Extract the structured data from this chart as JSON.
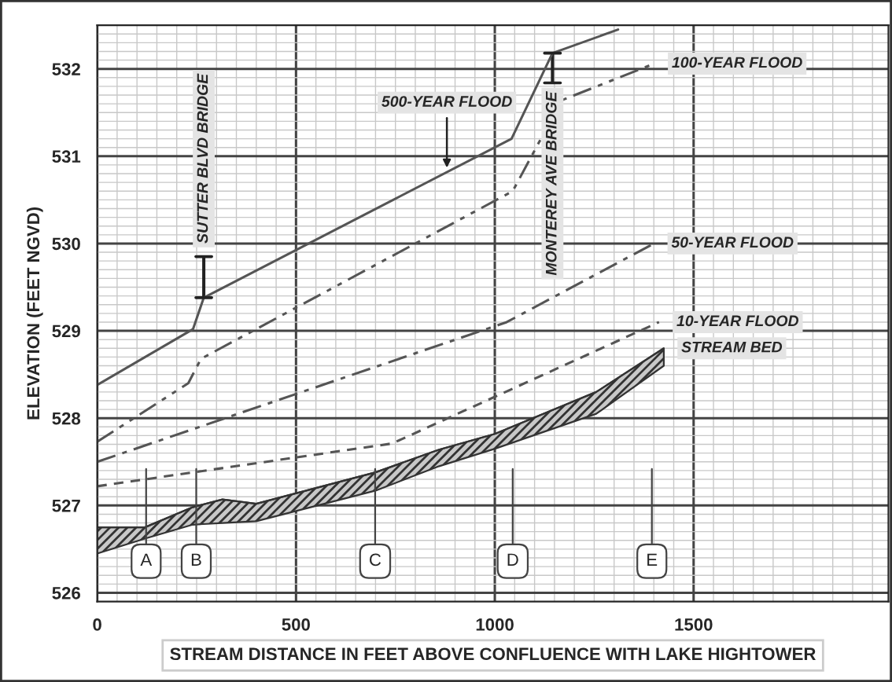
{
  "chart_data": {
    "type": "line",
    "xlabel": "STREAM DISTANCE IN FEET ABOVE CONFLUENCE WITH LAKE HIGHTOWER",
    "ylabel": "ELEVATION (FEET NGVD)",
    "xlim": [
      0,
      1990
    ],
    "xticks": [
      0,
      500,
      1000,
      1500
    ],
    "ylim": [
      525.9,
      532.5
    ],
    "yticks": [
      526,
      527,
      528,
      529,
      530,
      531,
      532
    ],
    "grid": true,
    "legend": false,
    "series": [
      {
        "name": "500-YEAR FLOOD",
        "line_style": "solid",
        "color": "#555555",
        "x": [
          0,
          241,
          268,
          1042,
          1145,
          1310
        ],
        "values": [
          528.38,
          529.02,
          529.38,
          531.2,
          532.18,
          532.45
        ]
      },
      {
        "name": "100-YEAR FLOOD",
        "line_style": "dashdotdot",
        "color": "#555555",
        "x": [
          0,
          229,
          261,
          1045,
          1168,
          1401
        ],
        "values": [
          527.73,
          528.4,
          528.68,
          530.6,
          531.64,
          532.06
        ]
      },
      {
        "name": "50-YEAR FLOOD",
        "line_style": "dashdot",
        "color": "#555555",
        "x": [
          0,
          1030,
          1400
        ],
        "values": [
          527.5,
          529.1,
          530.0
        ]
      },
      {
        "name": "10-YEAR FLOOD",
        "line_style": "dashed",
        "color": "#555555",
        "x": [
          0,
          742,
          1413
        ],
        "values": [
          527.22,
          527.71,
          529.1
        ]
      },
      {
        "name": "STREAM BED",
        "color": "#333333",
        "x": [
          0,
          120,
          240,
          315,
          400,
          700,
          860,
          1000,
          1255,
          1425
        ],
        "values": [
          526.75,
          526.75,
          526.98,
          527.07,
          527.02,
          527.38,
          527.64,
          527.82,
          528.3,
          528.8
        ],
        "lower": [
          526.45,
          526.62,
          526.78,
          526.8,
          526.82,
          527.17,
          527.45,
          527.65,
          528.05,
          528.6
        ],
        "upper": [
          526.75,
          526.75,
          526.98,
          527.07,
          527.02,
          527.38,
          527.64,
          527.82,
          528.3,
          528.8
        ]
      },
      {
        "type": "bar",
        "color": "#222222",
        "x": [
          268,
          1145
        ],
        "base": [
          529.38,
          531.84
        ],
        "values": [
          0.47,
          0.34
        ]
      }
    ],
    "annotations": [
      {
        "text": "SUTTER BLVD BRIDGE",
        "x": 268,
        "y": 529.85
      },
      {
        "text": "MONTEREY AVE BRIDGE",
        "x": 1145,
        "y": 531.84
      },
      {
        "text": "A",
        "x": 123
      },
      {
        "text": "B",
        "x": 249
      },
      {
        "text": "C",
        "x": 699
      },
      {
        "text": "D",
        "x": 1045
      },
      {
        "text": "E",
        "x": 1395
      }
    ]
  }
}
